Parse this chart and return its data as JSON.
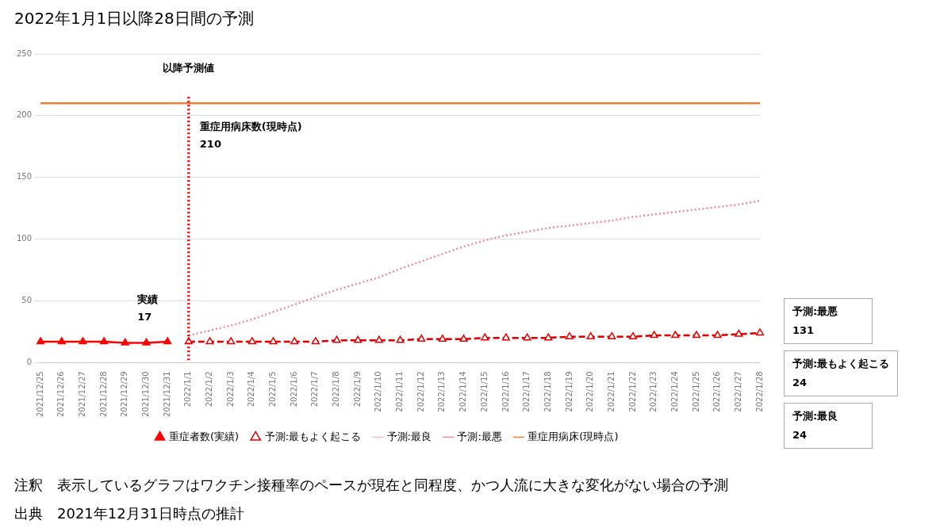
{
  "chart_data": {
    "type": "line",
    "title": "2022年1月1日以降28日間の予測",
    "categories": [
      "2021/12/25",
      "2021/12/26",
      "2021/12/27",
      "2021/12/28",
      "2021/12/29",
      "2021/12/30",
      "2021/12/31",
      "2022/1/1",
      "2022/1/2",
      "2022/1/3",
      "2022/1/4",
      "2022/1/5",
      "2022/1/6",
      "2022/1/7",
      "2022/1/8",
      "2022/1/9",
      "2022/1/10",
      "2022/1/11",
      "2022/1/12",
      "2022/1/13",
      "2022/1/14",
      "2022/1/15",
      "2022/1/16",
      "2022/1/17",
      "2022/1/18",
      "2022/1/19",
      "2022/1/20",
      "2022/1/21",
      "2022/1/22",
      "2022/1/23",
      "2022/1/24",
      "2022/1/25",
      "2022/1/26",
      "2022/1/27",
      "2022/1/28"
    ],
    "series": [
      {
        "name": "重症者数(実績)",
        "color": "#ff0000",
        "marker": "triangle",
        "line_style": "solid",
        "values": [
          17,
          17,
          17,
          17,
          16,
          16,
          17,
          null,
          null,
          null,
          null,
          null,
          null,
          null,
          null,
          null,
          null,
          null,
          null,
          null,
          null,
          null,
          null,
          null,
          null,
          null,
          null,
          null,
          null,
          null,
          null,
          null,
          null,
          null,
          null
        ]
      },
      {
        "name": "予測:最もよく起こる",
        "color": "#e00000",
        "marker": "triangle",
        "line_style": "dashed",
        "values": [
          null,
          null,
          null,
          null,
          null,
          null,
          null,
          17,
          17,
          17,
          17,
          17,
          17,
          17,
          18,
          18,
          18,
          18,
          19,
          19,
          19,
          20,
          20,
          20,
          20,
          21,
          21,
          21,
          21,
          22,
          22,
          22,
          22,
          23,
          24
        ]
      },
      {
        "name": "予測:最良",
        "color": "#f7b9c6",
        "marker": "none",
        "line_style": "dashed",
        "values": [
          null,
          null,
          null,
          null,
          null,
          null,
          null,
          17,
          17,
          17,
          17,
          17,
          17,
          17,
          18,
          18,
          18,
          18,
          19,
          19,
          19,
          20,
          20,
          20,
          20,
          21,
          21,
          21,
          21,
          22,
          22,
          22,
          22,
          23,
          24
        ]
      },
      {
        "name": "予測:最悪",
        "color": "#f08a9a",
        "marker": "none",
        "line_style": "dotted",
        "values": [
          null,
          null,
          null,
          null,
          null,
          null,
          null,
          22,
          26,
          30,
          35,
          41,
          47,
          53,
          59,
          64,
          69,
          76,
          82,
          88,
          94,
          99,
          103,
          106,
          109,
          111,
          113,
          115,
          118,
          120,
          122,
          124,
          126,
          128,
          131
        ]
      },
      {
        "name": "重症用病床(現時点)",
        "color": "#ed7d31",
        "marker": "none",
        "line_style": "solid",
        "values": [
          210,
          210,
          210,
          210,
          210,
          210,
          210,
          210,
          210,
          210,
          210,
          210,
          210,
          210,
          210,
          210,
          210,
          210,
          210,
          210,
          210,
          210,
          210,
          210,
          210,
          210,
          210,
          210,
          210,
          210,
          210,
          210,
          210,
          210,
          210
        ]
      }
    ],
    "ylim": [
      0,
      250
    ],
    "yticks": [
      0,
      50,
      100,
      150,
      200,
      250
    ],
    "grid": "y",
    "legend": "bottom",
    "ref_lines": [
      {
        "axis": "x",
        "value": "2022/1/1",
        "label": "以降予測値",
        "color": "#ff0000",
        "line_style": "dotted"
      }
    ],
    "annotations": [
      {
        "text": "重症用病床数(現時点)\n210",
        "x": "2022/1/1",
        "y": 210
      },
      {
        "text": "実績\n17",
        "x": "2021/12/31",
        "y": 17
      },
      "予測:最悪\n131",
      "予測:最もよく起こる\n24",
      "予測:最良\n24",
      "注釈　表示しているグラフはワクチン接種率のペースが現在と同程度、かつ人流に大きな変化がない場合の予測",
      "出典　2021年12月31日時点の推計"
    ]
  }
}
